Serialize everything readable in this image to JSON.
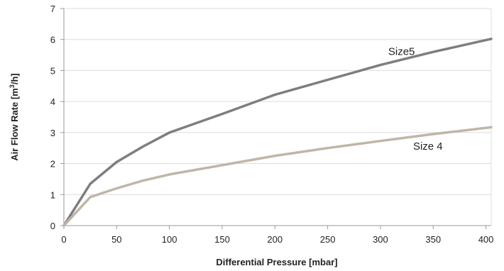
{
  "chart_data": {
    "type": "line",
    "title": "",
    "xlabel": "Differential Pressure [mbar]",
    "ylabel_parts": [
      "Air Flow Rate [m",
      "3",
      "/h]"
    ],
    "xlim": [
      0,
      405
    ],
    "ylim": [
      0,
      7
    ],
    "xticks": [
      0,
      50,
      100,
      150,
      200,
      250,
      300,
      350,
      400
    ],
    "yticks": [
      0,
      1,
      2,
      3,
      4,
      5,
      6,
      7
    ],
    "grid": true,
    "series": [
      {
        "name": "Size5",
        "color": "#7b7e82",
        "x": [
          0,
          25,
          50,
          75,
          100,
          150,
          200,
          250,
          300,
          350,
          405
        ],
        "y": [
          0,
          1.35,
          2.05,
          2.55,
          3.0,
          3.6,
          4.22,
          4.7,
          5.18,
          5.6,
          6.02
        ]
      },
      {
        "name": "Size 4",
        "color": "#bfb6a6",
        "x": [
          0,
          25,
          50,
          75,
          100,
          150,
          200,
          250,
          300,
          350,
          405
        ],
        "y": [
          0,
          0.92,
          1.2,
          1.45,
          1.65,
          1.95,
          2.25,
          2.5,
          2.73,
          2.95,
          3.17
        ]
      }
    ],
    "annotations": [
      {
        "text": "Size5",
        "series": "Size5",
        "x": 320,
        "y": 5.5
      },
      {
        "text": "Size 4",
        "series": "Size 4",
        "x": 345,
        "y": 2.45
      }
    ]
  }
}
